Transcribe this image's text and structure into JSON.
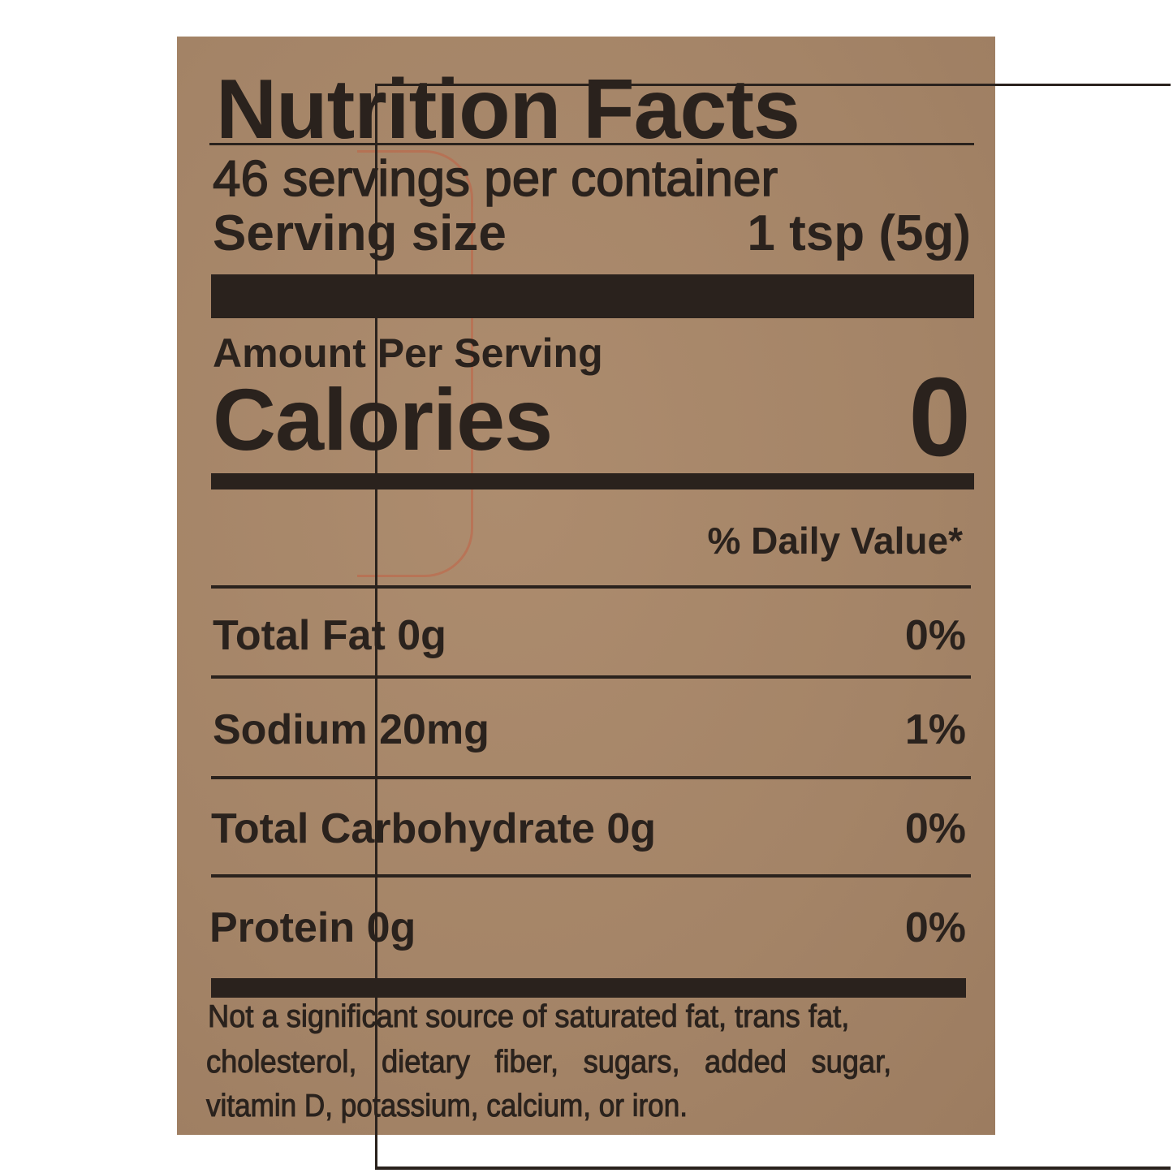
{
  "title": "Nutrition Facts",
  "servings_per_container": "46 servings per container",
  "serving_size_label": "Serving size",
  "serving_size_value": "1 tsp (5g)",
  "amount_per_serving": "Amount Per Serving",
  "calories_label": "Calories",
  "calories_value": "0",
  "daily_value_header": "% Daily Value*",
  "nutrients": [
    {
      "label": "Total Fat 0g",
      "dv": "0%"
    },
    {
      "label": "Sodium 20mg",
      "dv": "1%"
    },
    {
      "label": "Total Carbohydrate 0g",
      "dv": "0%"
    },
    {
      "label": "Protein 0g",
      "dv": "0%"
    }
  ],
  "footnote": [
    "Not a significant source of saturated fat, trans fat,",
    "cholesterol, dietary fiber, sugars, added sugar,",
    "vitamin D, potassium, calcium, or iron."
  ],
  "colors": {
    "kraft": "#a48467",
    "ink": "#2a221d",
    "stamp": "#c85a3c"
  }
}
